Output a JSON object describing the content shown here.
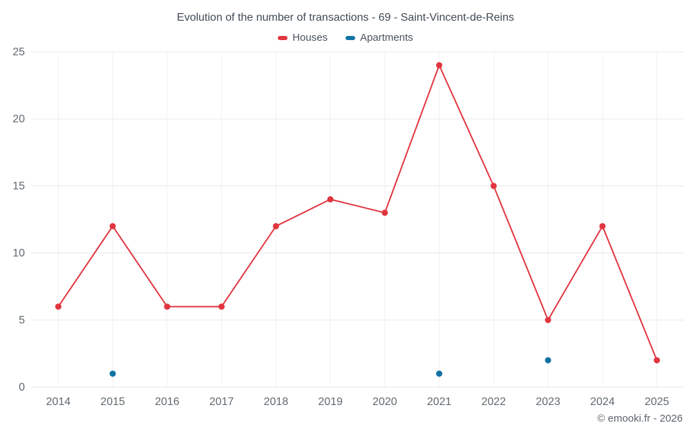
{
  "header": {
    "title": "Evolution of the number of transactions - 69 - Saint-Vincent-de-Reins"
  },
  "footer": {
    "credit": "© emooki.fr - 2026"
  },
  "colors": {
    "houses": "#e1353f",
    "apartments": "#1173a3",
    "grid_horizontal": "#e7e7e7",
    "grid_vertical": "#f1f1f1"
  },
  "chart_data": {
    "type": "line",
    "title": "Evolution of the number of transactions - 69 - Saint-Vincent-de-Reins",
    "categories": [
      "2014",
      "2015",
      "2016",
      "2017",
      "2018",
      "2019",
      "2020",
      "2021",
      "2022",
      "2023",
      "2024",
      "2025"
    ],
    "series": [
      {
        "name": "Houses",
        "color": "#e1353f",
        "values": [
          6,
          12,
          6,
          6,
          12,
          14,
          13,
          24,
          15,
          5,
          12,
          2
        ]
      },
      {
        "name": "Apartments",
        "color": "#1173a3",
        "values": [
          null,
          1,
          null,
          null,
          null,
          null,
          null,
          1,
          null,
          2,
          null,
          null
        ]
      }
    ],
    "xlabel": "",
    "ylabel": "",
    "ylim": [
      0,
      25
    ],
    "yticks": [
      0,
      5,
      10,
      15,
      20,
      25
    ],
    "grid": true,
    "legend_position": "top"
  }
}
